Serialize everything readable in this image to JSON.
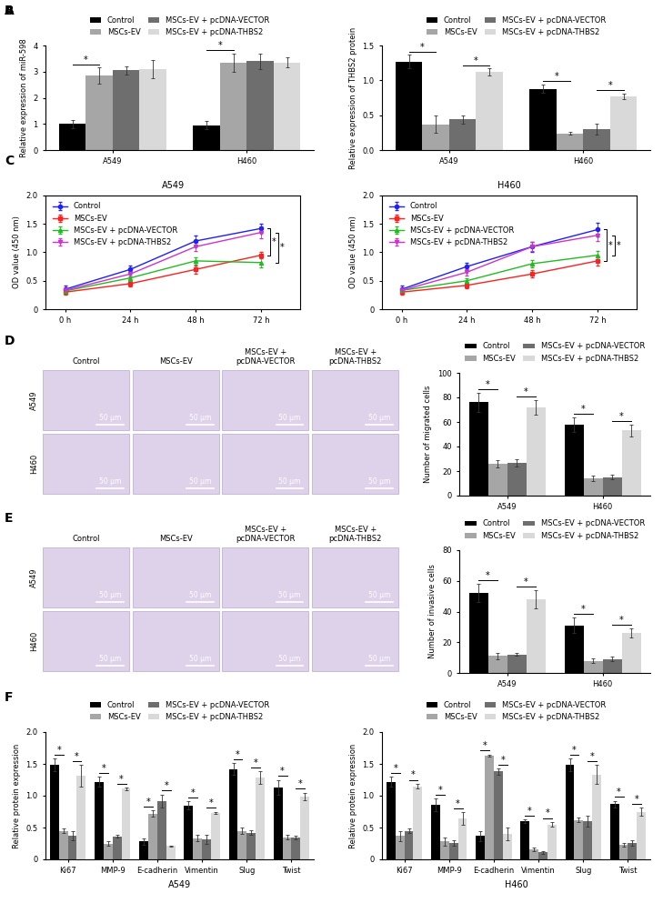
{
  "chart_data": [
    {
      "type": "bar",
      "panel": "A",
      "ylabel": "Relative expression of miR-598",
      "categories": [
        "A549",
        "H460"
      ],
      "series": [
        {
          "name": "Control",
          "color": "#000000",
          "values": [
            1.0,
            0.95
          ],
          "errors": [
            0.15,
            0.15
          ]
        },
        {
          "name": "MSCs-EV",
          "color": "#a6a6a6",
          "values": [
            2.85,
            3.35
          ],
          "errors": [
            0.3,
            0.35
          ]
        },
        {
          "name": "MSCs-EV + pcDNA-VECTOR",
          "color": "#6e6e6e",
          "values": [
            3.05,
            3.4
          ],
          "errors": [
            0.15,
            0.3
          ]
        },
        {
          "name": "MSCs-EV + pcDNA-THBS2",
          "color": "#d9d9d9",
          "values": [
            3.1,
            3.35
          ],
          "errors": [
            0.35,
            0.2
          ]
        }
      ],
      "ylim": [
        0,
        4
      ],
      "yticks": [
        0,
        1,
        2,
        3,
        4
      ],
      "legend": "top",
      "significance": [
        {
          "category": "A549",
          "from": "Control",
          "to": "MSCs-EV",
          "label": "*"
        },
        {
          "category": "H460",
          "from": "Control",
          "to": "MSCs-EV",
          "label": "*"
        }
      ]
    },
    {
      "type": "bar",
      "panel": "B",
      "ylabel": "Relative expression of THBS2 protein",
      "categories": [
        "A549",
        "H460"
      ],
      "series": [
        {
          "name": "Control",
          "color": "#000000",
          "values": [
            1.27,
            0.88
          ],
          "errors": [
            0.1,
            0.06
          ]
        },
        {
          "name": "MSCs-EV",
          "color": "#a6a6a6",
          "values": [
            0.37,
            0.24
          ],
          "errors": [
            0.12,
            0.02
          ]
        },
        {
          "name": "MSCs-EV + pcDNA-VECTOR",
          "color": "#6e6e6e",
          "values": [
            0.44,
            0.3
          ],
          "errors": [
            0.06,
            0.08
          ]
        },
        {
          "name": "MSCs-EV + pcDNA-THBS2",
          "color": "#d9d9d9",
          "values": [
            1.12,
            0.77
          ],
          "errors": [
            0.05,
            0.04
          ]
        }
      ],
      "ylim": [
        0,
        1.5
      ],
      "yticks": [
        {
          "value": 0,
          "label": "0.0"
        },
        0.5,
        {
          "value": 1,
          "label": "1.0"
        },
        1.5
      ],
      "legend": "top",
      "significance": [
        {
          "category": "A549",
          "from": "Control",
          "to": "MSCs-EV",
          "label": "*"
        },
        {
          "category": "A549",
          "from": "MSCs-EV + pcDNA-VECTOR",
          "to": "MSCs-EV + pcDNA-THBS2",
          "label": "*"
        },
        {
          "category": "H460",
          "from": "Control",
          "to": "MSCs-EV",
          "label": "*"
        },
        {
          "category": "H460",
          "from": "MSCs-EV + pcDNA-VECTOR",
          "to": "MSCs-EV + pcDNA-THBS2",
          "label": "*"
        }
      ]
    },
    {
      "type": "line",
      "panel": "C",
      "title": "A549",
      "ylabel": "OD value (450 nm)",
      "categories": [
        "0 h",
        "24 h",
        "48 h",
        "72 h"
      ],
      "series": [
        {
          "name": "Control",
          "color": "#1f1fff",
          "marker": "o",
          "values": [
            0.35,
            0.7,
            1.2,
            1.42
          ],
          "errors": [
            0.06,
            0.06,
            0.09,
            0.08
          ]
        },
        {
          "name": "MSCs-EV",
          "color": "#ff2020",
          "marker": "s",
          "values": [
            0.3,
            0.45,
            0.7,
            0.95
          ],
          "errors": [
            0.04,
            0.05,
            0.07,
            0.06
          ]
        },
        {
          "name": "MSCs-EV + pcDNA-VECTOR",
          "color": "#22bb22",
          "marker": "^",
          "values": [
            0.32,
            0.55,
            0.85,
            0.82
          ],
          "errors": [
            0.04,
            0.05,
            0.06,
            0.09
          ]
        },
        {
          "name": "MSCs-EV + pcDNA-THBS2",
          "color": "#cc33cc",
          "marker": "v",
          "values": [
            0.33,
            0.62,
            1.1,
            1.35
          ],
          "errors": [
            0.04,
            0.05,
            0.08,
            0.1
          ]
        }
      ],
      "ylim": [
        0,
        2
      ],
      "yticks": [
        0,
        0.5,
        {
          "value": 1,
          "label": "1.0"
        },
        1.5,
        {
          "value": 2,
          "label": "2.0"
        }
      ],
      "legend": "upper left",
      "significance": [
        {
          "category": "72 h",
          "from": "Control",
          "to": "MSCs-EV",
          "label": "*"
        },
        {
          "category": "72 h",
          "from": "MSCs-EV + pcDNA-VECTOR",
          "to": "MSCs-EV + pcDNA-THBS2",
          "label": "*"
        }
      ]
    },
    {
      "type": "line",
      "title": "H460",
      "ylabel": "OD value (450 nm)",
      "categories": [
        "0 h",
        "24 h",
        "48 h",
        "72 h"
      ],
      "series": [
        {
          "name": "Control",
          "color": "#1f1fff",
          "marker": "o",
          "values": [
            0.35,
            0.75,
            1.1,
            1.4
          ],
          "errors": [
            0.06,
            0.07,
            0.09,
            0.12
          ]
        },
        {
          "name": "MSCs-EV",
          "color": "#ff2020",
          "marker": "s",
          "values": [
            0.3,
            0.42,
            0.62,
            0.85
          ],
          "errors": [
            0.04,
            0.05,
            0.06,
            0.08
          ]
        },
        {
          "name": "MSCs-EV + pcDNA-VECTOR",
          "color": "#22bb22",
          "marker": "^",
          "values": [
            0.33,
            0.5,
            0.8,
            0.95
          ],
          "errors": [
            0.04,
            0.05,
            0.07,
            0.08
          ]
        },
        {
          "name": "MSCs-EV + pcDNA-THBS2",
          "color": "#cc33cc",
          "marker": "v",
          "values": [
            0.33,
            0.65,
            1.1,
            1.3
          ],
          "errors": [
            0.04,
            0.06,
            0.08,
            0.1
          ]
        }
      ],
      "ylim": [
        0,
        2
      ],
      "yticks": [
        0,
        0.5,
        {
          "value": 1,
          "label": "1.0"
        },
        1.5,
        {
          "value": 2,
          "label": "2.0"
        }
      ],
      "legend": "upper left",
      "significance": [
        {
          "category": "72 h",
          "from": "Control",
          "to": "MSCs-EV",
          "label": "*"
        },
        {
          "category": "72 h",
          "from": "MSCs-EV + pcDNA-VECTOR",
          "to": "MSCs-EV + pcDNA-THBS2",
          "label": "*"
        }
      ]
    },
    {
      "type": "bar",
      "ylabel": "Number of migrated cells",
      "categories": [
        "A549",
        "H460"
      ],
      "series": [
        {
          "name": "Control",
          "color": "#000000",
          "values": [
            76,
            58
          ],
          "errors": [
            8,
            6
          ]
        },
        {
          "name": "MSCs-EV",
          "color": "#a6a6a6",
          "values": [
            26,
            14
          ],
          "errors": [
            3,
            2
          ]
        },
        {
          "name": "MSCs-EV + pcDNA-VECTOR",
          "color": "#6e6e6e",
          "values": [
            27,
            15
          ],
          "errors": [
            3,
            2
          ]
        },
        {
          "name": "MSCs-EV + pcDNA-THBS2",
          "color": "#d9d9d9",
          "values": [
            72,
            53
          ],
          "errors": [
            6,
            5
          ]
        }
      ],
      "ylim": [
        0,
        100
      ],
      "yticks": [
        0,
        20,
        40,
        60,
        80,
        100
      ],
      "legend": "top",
      "significance": [
        {
          "category": "A549",
          "from": "Control",
          "to": "MSCs-EV",
          "label": "*"
        },
        {
          "category": "A549",
          "from": "MSCs-EV + pcDNA-VECTOR",
          "to": "MSCs-EV + pcDNA-THBS2",
          "label": "*"
        },
        {
          "category": "H460",
          "from": "Control",
          "to": "MSCs-EV",
          "label": "*"
        },
        {
          "category": "H460",
          "from": "MSCs-EV + pcDNA-VECTOR",
          "to": "MSCs-EV + pcDNA-THBS2",
          "label": "*"
        }
      ]
    },
    {
      "type": "bar",
      "ylabel": "Number of invasive cells",
      "categories": [
        "A549",
        "H460"
      ],
      "series": [
        {
          "name": "Control",
          "color": "#000000",
          "values": [
            52,
            31
          ],
          "errors": [
            6,
            5
          ]
        },
        {
          "name": "MSCs-EV",
          "color": "#a6a6a6",
          "values": [
            11,
            8
          ],
          "errors": [
            2,
            1.5
          ]
        },
        {
          "name": "MSCs-EV + pcDNA-VECTOR",
          "color": "#6e6e6e",
          "values": [
            12,
            9
          ],
          "errors": [
            1,
            1.5
          ]
        },
        {
          "name": "MSCs-EV + pcDNA-THBS2",
          "color": "#d9d9d9",
          "values": [
            48,
            26
          ],
          "errors": [
            6,
            3
          ]
        }
      ],
      "ylim": [
        0,
        80
      ],
      "yticks": [
        0,
        20,
        40,
        60,
        80
      ],
      "legend": "top",
      "significance": [
        {
          "category": "A549",
          "from": "Control",
          "to": "MSCs-EV",
          "label": "*"
        },
        {
          "category": "A549",
          "from": "MSCs-EV + pcDNA-VECTOR",
          "to": "MSCs-EV + pcDNA-THBS2",
          "label": "*"
        },
        {
          "category": "H460",
          "from": "Control",
          "to": "MSCs-EV",
          "label": "*"
        },
        {
          "category": "H460",
          "from": "MSCs-EV + pcDNA-VECTOR",
          "to": "MSCs-EV + pcDNA-THBS2",
          "label": "*"
        }
      ]
    },
    {
      "type": "bar",
      "panel": "F",
      "xlabel": "A549",
      "ylabel": "Relative protein expression",
      "categories": [
        "Ki67",
        "MMP-9",
        "E-cadherin",
        "Vimentin",
        "Slug",
        "Twist"
      ],
      "series": [
        {
          "name": "Control",
          "color": "#000000",
          "values": [
            1.48,
            1.22,
            0.28,
            0.85,
            1.42,
            1.13
          ],
          "errors": [
            0.1,
            0.08,
            0.05,
            0.06,
            0.09,
            0.12
          ]
        },
        {
          "name": "MSCs-EV",
          "color": "#a6a6a6",
          "values": [
            0.45,
            0.25,
            0.72,
            0.33,
            0.45,
            0.35
          ],
          "errors": [
            0.04,
            0.04,
            0.05,
            0.05,
            0.05,
            0.03
          ]
        },
        {
          "name": "MSCs-EV + pcDNA-VECTOR",
          "color": "#6e6e6e",
          "values": [
            0.37,
            0.36,
            0.92,
            0.32,
            0.42,
            0.34
          ],
          "errors": [
            0.07,
            0.02,
            0.1,
            0.07,
            0.04,
            0.03
          ]
        },
        {
          "name": "MSCs-EV + pcDNA-THBS2",
          "color": "#d9d9d9",
          "values": [
            1.32,
            1.11,
            0.21,
            0.73,
            1.28,
            0.99
          ],
          "errors": [
            0.17,
            0.02,
            0.01,
            0.02,
            0.1,
            0.06
          ]
        }
      ],
      "ylim": [
        0,
        2
      ],
      "yticks": [
        0,
        0.5,
        {
          "value": 1,
          "label": "1.0"
        },
        1.5,
        {
          "value": 2,
          "label": "2.0"
        }
      ],
      "legend": "top",
      "significance": [
        {
          "category": "Ki67",
          "from": "Control",
          "to": "MSCs-EV",
          "label": "*"
        },
        {
          "category": "Ki67",
          "from": "MSCs-EV + pcDNA-VECTOR",
          "to": "MSCs-EV + pcDNA-THBS2",
          "label": "*"
        },
        {
          "category": "MMP-9",
          "from": "Control",
          "to": "MSCs-EV",
          "label": "*"
        },
        {
          "category": "MMP-9",
          "from": "MSCs-EV + pcDNA-VECTOR",
          "to": "MSCs-EV + pcDNA-THBS2",
          "label": "*"
        },
        {
          "category": "E-cadherin",
          "from": "Control",
          "to": "MSCs-EV",
          "label": "*"
        },
        {
          "category": "E-cadherin",
          "from": "MSCs-EV + pcDNA-VECTOR",
          "to": "MSCs-EV + pcDNA-THBS2",
          "label": "*"
        },
        {
          "category": "Vimentin",
          "from": "Control",
          "to": "MSCs-EV",
          "label": "*"
        },
        {
          "category": "Vimentin",
          "from": "MSCs-EV + pcDNA-VECTOR",
          "to": "MSCs-EV + pcDNA-THBS2",
          "label": "*"
        },
        {
          "category": "Slug",
          "from": "Control",
          "to": "MSCs-EV",
          "label": "*"
        },
        {
          "category": "Slug",
          "from": "MSCs-EV + pcDNA-VECTOR",
          "to": "MSCs-EV + pcDNA-THBS2",
          "label": "*"
        },
        {
          "category": "Twist",
          "from": "Control",
          "to": "MSCs-EV",
          "label": "*"
        },
        {
          "category": "Twist",
          "from": "MSCs-EV + pcDNA-VECTOR",
          "to": "MSCs-EV + pcDNA-THBS2",
          "label": "*"
        }
      ]
    },
    {
      "type": "bar",
      "xlabel": "H460",
      "ylabel": "Relative protein expression",
      "categories": [
        "Ki67",
        "MMP-9",
        "E-cadherin",
        "Vimentin",
        "Slug",
        "Twist"
      ],
      "series": [
        {
          "name": "Control",
          "color": "#000000",
          "values": [
            1.22,
            0.86,
            0.37,
            0.6,
            1.48,
            0.87
          ],
          "errors": [
            0.08,
            0.1,
            0.08,
            0.03,
            0.1,
            0.05
          ]
        },
        {
          "name": "MSCs-EV",
          "color": "#a6a6a6",
          "values": [
            0.37,
            0.28,
            1.63,
            0.16,
            0.62,
            0.23
          ],
          "errors": [
            0.08,
            0.06,
            0.02,
            0.03,
            0.04,
            0.03
          ]
        },
        {
          "name": "MSCs-EV + pcDNA-VECTOR",
          "color": "#6e6e6e",
          "values": [
            0.45,
            0.26,
            1.38,
            0.11,
            0.6,
            0.26
          ],
          "errors": [
            0.04,
            0.04,
            0.05,
            0.02,
            0.08,
            0.04
          ]
        },
        {
          "name": "MSCs-EV + pcDNA-THBS2",
          "color": "#d9d9d9",
          "values": [
            1.15,
            0.64,
            0.4,
            0.55,
            1.33,
            0.75
          ],
          "errors": [
            0.04,
            0.1,
            0.1,
            0.04,
            0.15,
            0.06
          ]
        }
      ],
      "ylim": [
        0,
        2
      ],
      "yticks": [
        0,
        0.5,
        {
          "value": 1,
          "label": "1.0"
        },
        1.5,
        {
          "value": 2,
          "label": "2.0"
        }
      ],
      "legend": "top",
      "significance": [
        {
          "category": "Ki67",
          "from": "Control",
          "to": "MSCs-EV",
          "label": "*"
        },
        {
          "category": "Ki67",
          "from": "MSCs-EV + pcDNA-VECTOR",
          "to": "MSCs-EV + pcDNA-THBS2",
          "label": "*"
        },
        {
          "category": "MMP-9",
          "from": "Control",
          "to": "MSCs-EV",
          "label": "*"
        },
        {
          "category": "MMP-9",
          "from": "MSCs-EV + pcDNA-VECTOR",
          "to": "MSCs-EV + pcDNA-THBS2",
          "label": "*"
        },
        {
          "category": "E-cadherin",
          "from": "Control",
          "to": "MSCs-EV",
          "label": "*"
        },
        {
          "category": "E-cadherin",
          "from": "MSCs-EV + pcDNA-VECTOR",
          "to": "MSCs-EV + pcDNA-THBS2",
          "label": "*"
        },
        {
          "category": "Vimentin",
          "from": "Control",
          "to": "MSCs-EV",
          "label": "*"
        },
        {
          "category": "Vimentin",
          "from": "MSCs-EV + pcDNA-VECTOR",
          "to": "MSCs-EV + pcDNA-THBS2",
          "label": "*"
        },
        {
          "category": "Slug",
          "from": "Control",
          "to": "MSCs-EV",
          "label": "*"
        },
        {
          "category": "Slug",
          "from": "MSCs-EV + pcDNA-VECTOR",
          "to": "MSCs-EV + pcDNA-THBS2",
          "label": "*"
        },
        {
          "category": "Twist",
          "from": "Control",
          "to": "MSCs-EV",
          "label": "*"
        },
        {
          "category": "Twist",
          "from": "MSCs-EV + pcDNA-VECTOR",
          "to": "MSCs-EV + pcDNA-THBS2",
          "label": "*"
        }
      ]
    }
  ],
  "image_panels": [
    {
      "panel": "D",
      "columns": [
        "Control",
        "MSCs-EV",
        "MSCs-EV +\npcDNA-VECTOR",
        "MSCs-EV +\npcDNA-THBS2"
      ],
      "rows": [
        "A549",
        "H460"
      ],
      "scale_bar": "50 μm"
    },
    {
      "panel": "E",
      "columns": [
        "Control",
        "MSCs-EV",
        "MSCs-EV +\npcDNA-VECTOR",
        "MSCs-EV +\npcDNA-THBS2"
      ],
      "rows": [
        "A549",
        "H460"
      ],
      "scale_bar": "50 μm"
    }
  ]
}
